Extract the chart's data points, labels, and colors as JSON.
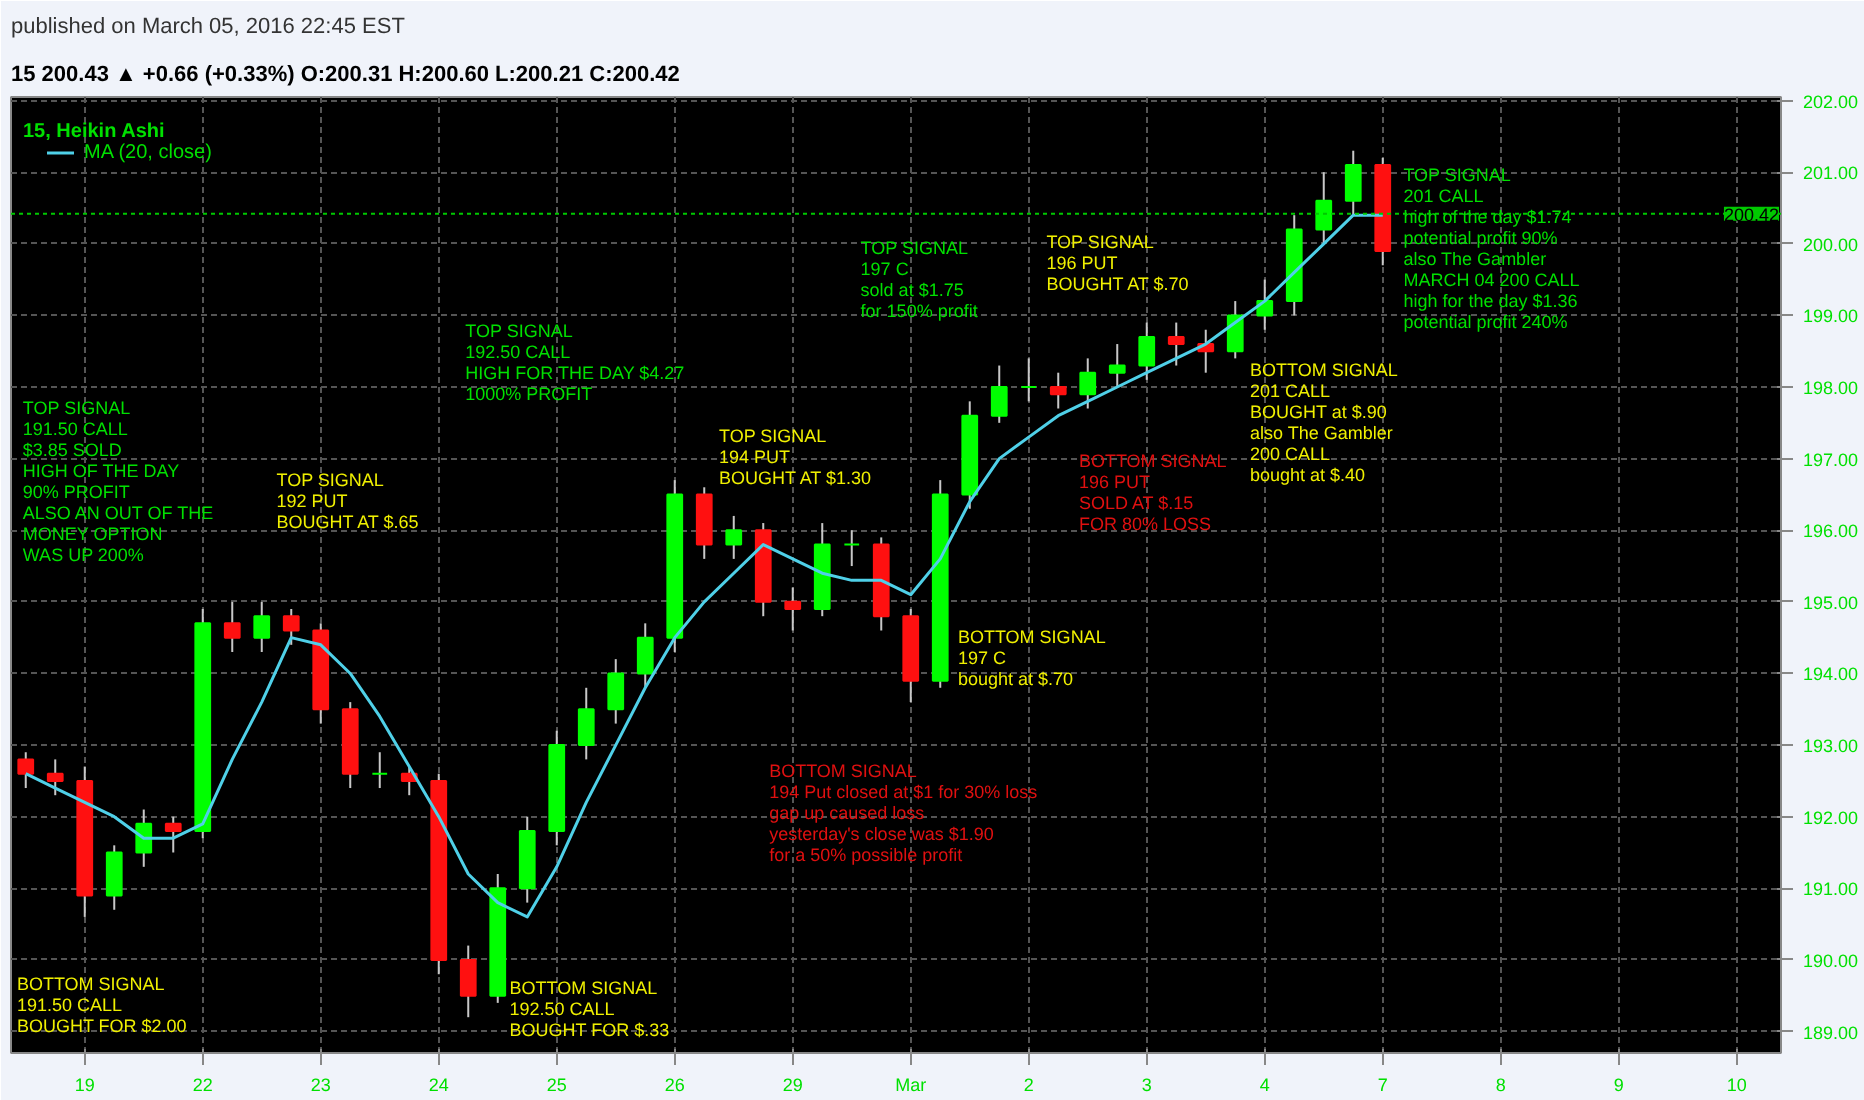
{
  "chart_data": {
    "type": "candlestick",
    "title": "15, Heikin Ashi",
    "subtitle": "published on March 05, 2016 22:45 EST",
    "categories": [
      null,
      null,
      "19",
      null,
      null,
      null,
      "22",
      null,
      null,
      null,
      "23",
      null,
      null,
      null,
      "24",
      null,
      null,
      null,
      "25",
      null,
      null,
      null,
      "26",
      null,
      null,
      null,
      "29",
      null,
      null,
      null,
      "Mar",
      null,
      null,
      null,
      "2",
      null,
      null,
      null,
      "3",
      null,
      null,
      null,
      "4",
      null,
      null,
      null,
      "7",
      null,
      null,
      null,
      "8",
      null,
      null,
      null,
      "9",
      null,
      null,
      null,
      "10",
      null
    ],
    "ohlc": [
      [
        192.8,
        192.9,
        192.4,
        192.6
      ],
      [
        192.6,
        192.8,
        192.3,
        192.5
      ],
      [
        192.5,
        192.7,
        190.6,
        190.9
      ],
      [
        190.9,
        191.6,
        190.7,
        191.5
      ],
      [
        191.5,
        192.1,
        191.3,
        191.9
      ],
      [
        191.9,
        192.0,
        191.5,
        191.8
      ],
      [
        191.8,
        194.9,
        191.7,
        194.7
      ],
      [
        194.7,
        195.0,
        194.3,
        194.5
      ],
      [
        194.5,
        195.0,
        194.3,
        194.8
      ],
      [
        194.8,
        194.9,
        194.4,
        194.6
      ],
      [
        194.6,
        194.7,
        193.3,
        193.5
      ],
      [
        193.5,
        193.6,
        192.4,
        192.6
      ],
      [
        192.6,
        192.9,
        192.4,
        192.6
      ],
      [
        192.6,
        192.7,
        192.3,
        192.5
      ],
      [
        192.5,
        192.6,
        189.8,
        190.0
      ],
      [
        190.0,
        190.2,
        189.2,
        189.5
      ],
      [
        189.5,
        191.2,
        189.4,
        191.0
      ],
      [
        191.0,
        192.0,
        190.8,
        191.8
      ],
      [
        191.8,
        193.2,
        191.6,
        193.0
      ],
      [
        193.0,
        193.8,
        192.8,
        193.5
      ],
      [
        193.5,
        194.2,
        193.3,
        194.0
      ],
      [
        194.0,
        194.7,
        193.8,
        194.5
      ],
      [
        194.5,
        196.7,
        194.3,
        196.5
      ],
      [
        196.5,
        196.6,
        195.6,
        195.8
      ],
      [
        195.8,
        196.2,
        195.6,
        196.0
      ],
      [
        196.0,
        196.1,
        194.8,
        195.0
      ],
      [
        195.0,
        195.2,
        194.6,
        194.9
      ],
      [
        194.9,
        196.1,
        194.8,
        195.8
      ],
      [
        195.8,
        196.0,
        195.5,
        195.8
      ],
      [
        195.8,
        195.9,
        194.6,
        194.8
      ],
      [
        194.8,
        194.9,
        193.6,
        193.9
      ],
      [
        193.9,
        196.7,
        193.8,
        196.5
      ],
      [
        196.5,
        197.8,
        196.3,
        197.6
      ],
      [
        197.6,
        198.3,
        197.5,
        198.0
      ],
      [
        198.0,
        198.4,
        197.8,
        198.0
      ],
      [
        198.0,
        198.2,
        197.7,
        197.9
      ],
      [
        197.9,
        198.4,
        197.7,
        198.2
      ],
      [
        198.2,
        198.6,
        198.0,
        198.3
      ],
      [
        198.3,
        198.9,
        198.1,
        198.7
      ],
      [
        198.7,
        198.9,
        198.3,
        198.6
      ],
      [
        198.6,
        198.8,
        198.2,
        198.5
      ],
      [
        198.5,
        199.2,
        198.4,
        199.0
      ],
      [
        199.0,
        199.5,
        198.8,
        199.2
      ],
      [
        199.2,
        200.4,
        199.0,
        200.2
      ],
      [
        200.2,
        201.0,
        200.0,
        200.6
      ],
      [
        200.6,
        201.3,
        200.4,
        201.1
      ],
      [
        201.1,
        201.2,
        199.7,
        199.9
      ],
      null,
      null,
      null,
      null,
      null,
      null,
      null,
      null,
      null,
      null,
      null,
      null,
      null
    ],
    "series": [
      {
        "type": "line",
        "name": "MA (20, close)",
        "color": "#4fd0e8",
        "values": [
          192.6,
          192.4,
          192.2,
          192.0,
          191.7,
          191.7,
          191.9,
          192.8,
          193.6,
          194.5,
          194.4,
          194.0,
          193.4,
          192.7,
          192.0,
          191.2,
          190.8,
          190.6,
          191.3,
          192.2,
          193.0,
          193.8,
          194.5,
          195.0,
          195.4,
          195.8,
          195.6,
          195.4,
          195.3,
          195.3,
          195.1,
          195.6,
          196.4,
          197.0,
          197.3,
          197.6,
          197.8,
          198.0,
          198.2,
          198.4,
          198.6,
          198.9,
          199.2,
          199.6,
          200.0,
          200.4,
          200.4,
          null,
          null,
          null,
          null,
          null,
          null,
          null,
          null,
          null,
          null,
          null,
          null,
          null
        ]
      }
    ],
    "ylim": [
      188.7,
      202.05
    ],
    "yticks": [
      {
        "value": 189,
        "label": "189.00"
      },
      {
        "value": 190,
        "label": "190.00"
      },
      {
        "value": 191,
        "label": "191.00"
      },
      {
        "value": 192,
        "label": "192.00"
      },
      {
        "value": 193,
        "label": "193.00"
      },
      {
        "value": 194,
        "label": "194.00"
      },
      {
        "value": 195,
        "label": "195.00"
      },
      {
        "value": 196,
        "label": "196.00"
      },
      {
        "value": 197,
        "label": "197.00"
      },
      {
        "value": 198,
        "label": "198.00"
      },
      {
        "value": 199,
        "label": "199.00"
      },
      {
        "value": 200,
        "label": "200.00"
      },
      {
        "value": 201,
        "label": "201.00"
      },
      {
        "value": 202,
        "label": "202.00"
      }
    ],
    "ref_lines": [
      {
        "axis": "y",
        "value": 200.42,
        "label": "200.42",
        "color": "#00c800",
        "line_style": "dotted"
      }
    ],
    "grid": true,
    "legend": "top left",
    "annotations": [
      "15 200.43 ▲ +0.66 (+0.33%) O:200.31 H:200.60 L:200.21 C:200.42",
      "TOP SIGNAL\n191.50 CALL\n$3.85 SOLD\n HIGH OF THE DAY\n90% PROFIT\nALSO AN OUT OF THE\nMONEY OPTION\nWAS UP 200%",
      "BOTTOM SIGNAL\n191.50 CALL\nBOUGHT FOR $2.00",
      "TOP SIGNAL\n192 PUT\nBOUGHT AT $.65",
      "TOP SIGNAL\n192.50 CALL\nHIGH FOR THE DAY $4.27\n1000% PROFIT",
      "BOTTOM SIGNAL\n192.50 CALL\nBOUGHT FOR $.33",
      "TOP SIGNAL\n194 PUT\nBOUGHT AT $1.30",
      "TOP SIGNAL\n197 C\nsold at $1.75\n for 150% profit",
      "BOTTOM SIGNAL\n194 Put closed at $1 for 30% loss\ngap up caused loss\nyesterday's close was $1.90\nfor a 50% possible profit",
      "BOTTOM SIGNAL\n 197 C\nbought at $.70",
      "TOP SIGNAL\n196 PUT\nBOUGHT AT $.70",
      "BOTTOM SIGNAL\n196 PUT\nSOLD AT $.15\nFOR 80% LOSS",
      "BOTTOM SIGNAL\n201 CALL\nBOUGHT at $.90\nalso The Gambler\n 200 CALL\nbought at $.40",
      "TOP SIGNAL\n201 CALL\nhigh of the day $1.74\n potential profit 90%\nalso The Gambler\nMARCH 04 200 CALL\nhigh for the day $1.36\n potential profit 240%"
    ]
  }
}
